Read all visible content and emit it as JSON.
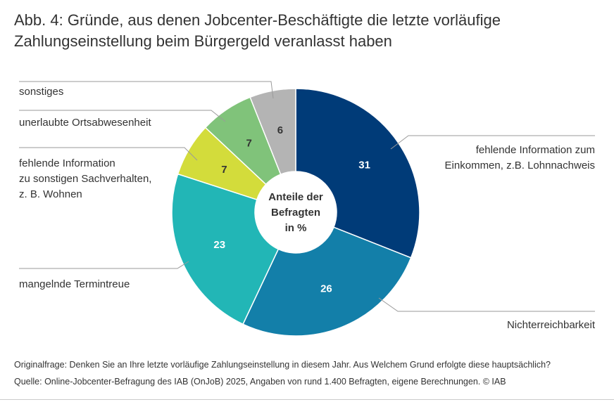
{
  "chart_data": {
    "type": "donut",
    "title": "Abb. 4: Gründe, aus denen Jobcenter-Beschäftigte die letzte vorläufige\nZahlungseinstellung beim Bürgergeld veranlasst haben",
    "center_label": "Anteile der\nBefragten\nin %",
    "categories": [
      "fehlende Information zum\nEinkommen, z.B. Lohnnachweis",
      "Nichterreichbarkeit",
      "mangelnde Termintreue",
      "fehlende Information\nzu sonstigen Sachverhalten,\nz. B. Wohnen",
      "unerlaubte Ortsabwesenheit",
      "sonstiges"
    ],
    "values": [
      31,
      26,
      23,
      7,
      7,
      6
    ],
    "colors": [
      "#003b78",
      "#137fa9",
      "#22b6b6",
      "#d3dc3b",
      "#80c37a",
      "#b4b4b4"
    ],
    "footnotes": [
      "Originalfrage: Denken Sie an Ihre letzte vorläufige Zahlungseinstellung in diesem Jahr. Aus Welchem Grund erfolgte diese hauptsächlich?",
      "Quelle: Online-Jobcenter-Befragung des IAB (OnJoB) 2025, Angaben von rund 1.400 Befragten, eigene Berechnungen. © IAB"
    ]
  }
}
